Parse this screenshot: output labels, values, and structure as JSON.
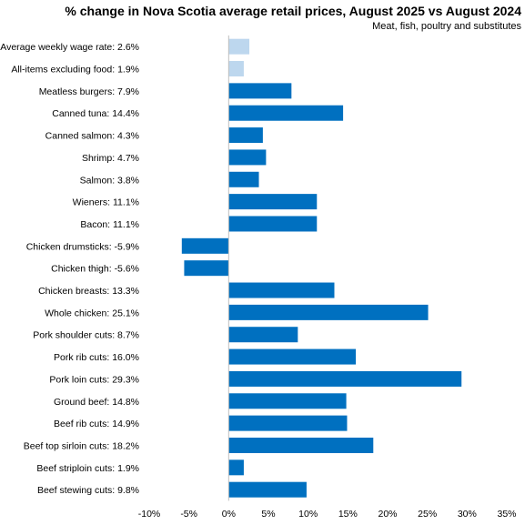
{
  "chart_data": {
    "type": "bar",
    "orientation": "horizontal",
    "title": "% change in Nova Scotia average retail prices, August 2025 vs August 2024",
    "subtitle": "Meat,  fish, poultry and substitutes",
    "categories": [
      "Average weekly wage rate: 2.6%",
      "All-items excluding food: 1.9%",
      "Meatless burgers: 7.9%",
      "Canned tuna: 14.4%",
      "Canned salmon: 4.3%",
      "Shrimp: 4.7%",
      "Salmon: 3.8%",
      "Wieners: 11.1%",
      "Bacon: 11.1%",
      "Chicken drumsticks: -5.9%",
      "Chicken thigh: -5.6%",
      "Chicken breasts: 13.3%",
      "Whole chicken: 25.1%",
      "Pork shoulder cuts: 8.7%",
      "Pork rib cuts: 16.0%",
      "Pork loin cuts: 29.3%",
      "Ground beef: 14.8%",
      "Beef rib cuts: 14.9%",
      "Beef top sirloin cuts: 18.2%",
      "Beef striploin cuts: 1.9%",
      "Beef stewing cuts: 9.8%"
    ],
    "values": [
      2.6,
      1.9,
      7.9,
      14.4,
      4.3,
      4.7,
      3.8,
      11.1,
      11.1,
      -5.9,
      -5.6,
      13.3,
      25.1,
      8.7,
      16.0,
      29.3,
      14.8,
      14.9,
      18.2,
      1.9,
      9.8
    ],
    "bar_colors": [
      "#bdd7ee",
      "#bdd7ee",
      "#0070c0",
      "#0070c0",
      "#0070c0",
      "#0070c0",
      "#0070c0",
      "#0070c0",
      "#0070c0",
      "#0070c0",
      "#0070c0",
      "#0070c0",
      "#0070c0",
      "#0070c0",
      "#0070c0",
      "#0070c0",
      "#0070c0",
      "#0070c0",
      "#0070c0",
      "#0070c0",
      "#0070c0"
    ],
    "xlim": [
      -10,
      35
    ],
    "xticks": [
      -10,
      -5,
      0,
      5,
      10,
      15,
      20,
      25,
      30,
      35
    ],
    "xtick_labels": [
      "-10%",
      "-5%",
      "0%",
      "5%",
      "10%",
      "15%",
      "20%",
      "25%",
      "30%",
      "35%"
    ],
    "grid": false,
    "legend": "none"
  }
}
